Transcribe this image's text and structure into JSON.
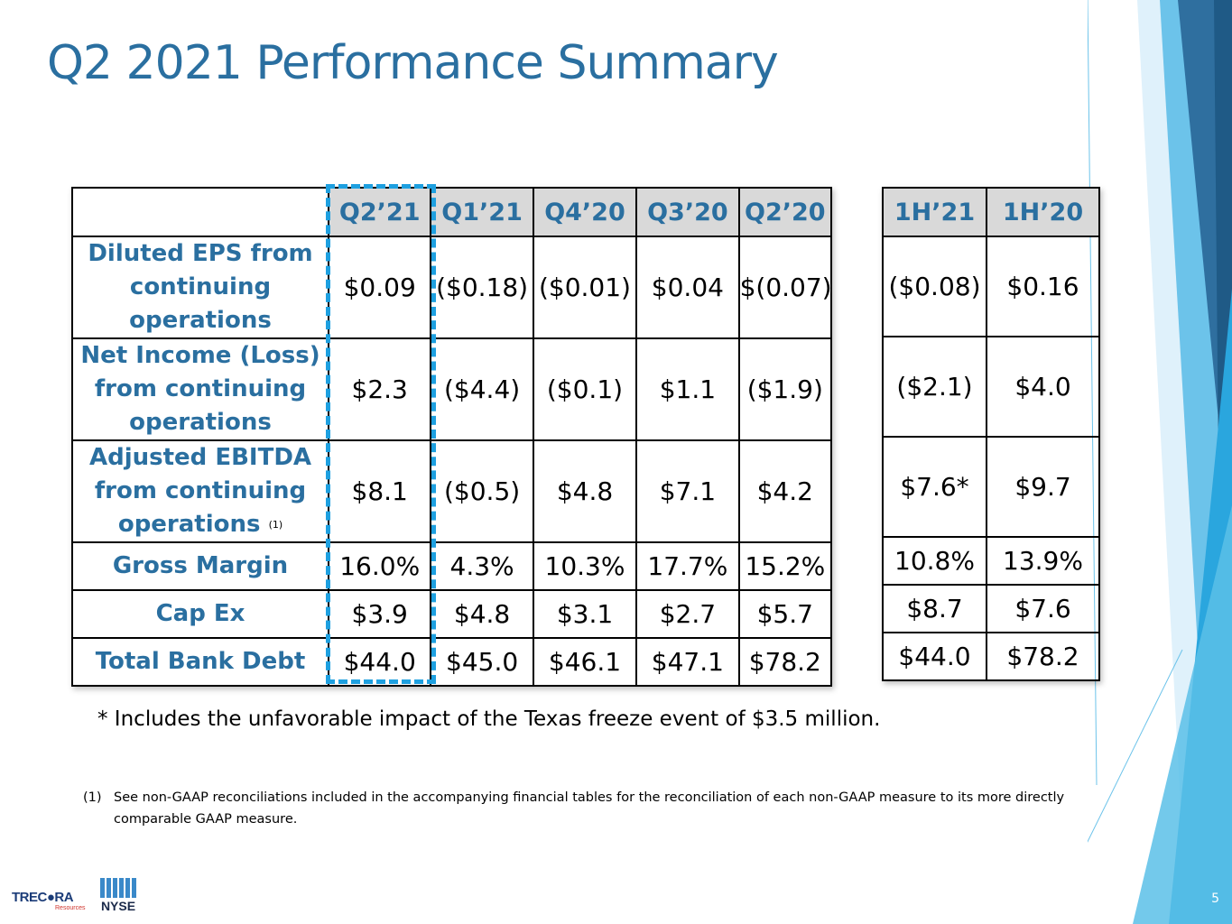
{
  "title": "Q2 2021 Performance Summary",
  "colors": {
    "accent": "#2a6fa0",
    "highlight": "#1ea0e0",
    "header_bg": "#d9d9d9"
  },
  "table": {
    "columns": [
      "Q2’21",
      "Q1’21",
      "Q4’20",
      "Q3’20",
      "Q2’20"
    ],
    "rows": [
      {
        "label_lines": [
          "Diluted EPS from",
          "continuing",
          "operations"
        ],
        "label_note": "",
        "values": [
          "$0.09",
          "($0.18)",
          "($0.01)",
          "$0.04",
          "$(0.07)"
        ]
      },
      {
        "label_lines": [
          "Net Income (Loss)",
          "from continuing",
          "operations"
        ],
        "label_note": "",
        "values": [
          "$2.3",
          "($4.4)",
          "($0.1)",
          "$1.1",
          "($1.9)"
        ]
      },
      {
        "label_lines": [
          "Adjusted EBITDA",
          "from continuing",
          "operations"
        ],
        "label_note": "(1)",
        "values": [
          "$8.1",
          "($0.5)",
          "$4.8",
          "$7.1",
          "$4.2"
        ]
      },
      {
        "label_lines": [
          "Gross Margin"
        ],
        "label_note": "",
        "values": [
          "16.0%",
          "4.3%",
          "10.3%",
          "17.7%",
          "15.2%"
        ]
      },
      {
        "label_lines": [
          "Cap Ex"
        ],
        "label_note": "",
        "values": [
          "$3.9",
          "$4.8",
          "$3.1",
          "$2.7",
          "$5.7"
        ]
      },
      {
        "label_lines": [
          "Total Bank Debt"
        ],
        "label_note": "",
        "values": [
          "$44.0",
          "$45.0",
          "$46.1",
          "$47.1",
          "$78.2"
        ]
      }
    ]
  },
  "half_table": {
    "columns": [
      "1H’21",
      "1H’20"
    ],
    "rows": [
      [
        "($0.08)",
        "$0.16"
      ],
      [
        "($2.1)",
        "$4.0"
      ],
      [
        "$7.6*",
        "$9.7"
      ],
      [
        "10.8%",
        "13.9%"
      ],
      [
        "$8.7",
        "$7.6"
      ],
      [
        "$44.0",
        "$78.2"
      ]
    ]
  },
  "note": "* Includes the unfavorable impact of the Texas freeze event of $3.5 million.",
  "footnote": {
    "marker": "(1)",
    "text": "See non-GAAP reconciliations included in the accompanying financial tables for the reconciliation of each non-GAAP measure to its more directly comparable GAAP measure."
  },
  "logos": {
    "trecora": "TREC●RA",
    "trecora_sub": "Resources",
    "nyse": "NYSE"
  },
  "page_number": "5"
}
